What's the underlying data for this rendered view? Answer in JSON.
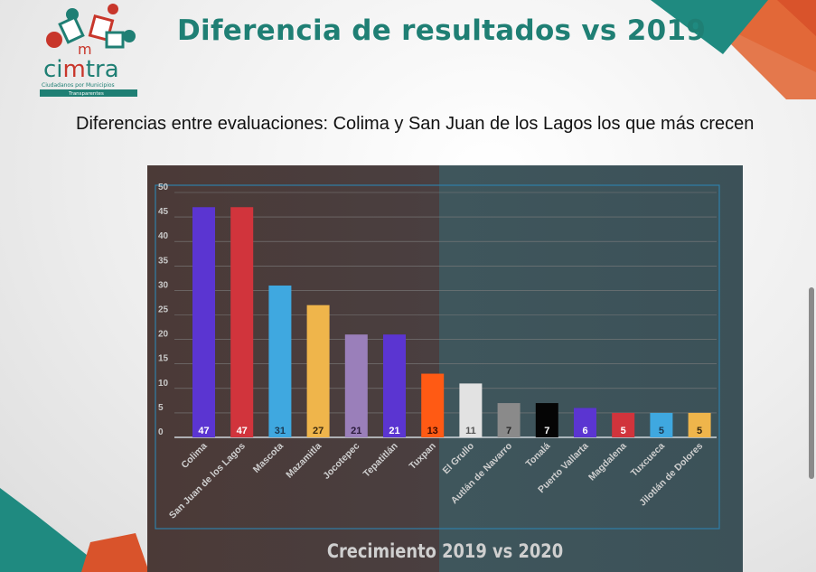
{
  "slide": {
    "title": "Diferencia de resultados vs 2019",
    "subtitle": "Diferencias entre evaluaciones: Colima y San Juan de los Lagos los que más crecen",
    "logo": {
      "name": "cimtra",
      "tagline": "Ciudadanos por Municipios Transparentes"
    }
  },
  "colors": {
    "teal": "#1f7f74",
    "orange": "#d9532b"
  },
  "chart_data": {
    "type": "bar",
    "title": "Crecimiento 2019 vs 2020",
    "xlabel": "",
    "ylabel": "",
    "ylim": [
      0,
      50
    ],
    "yticks": [
      0,
      5,
      10,
      15,
      20,
      25,
      30,
      35,
      40,
      45,
      50
    ],
    "grid": true,
    "categories": [
      "Colima",
      "San Juan de los Lagos",
      "Mascota",
      "Mazamitla",
      "Jocotepec",
      "Tepatitlán",
      "Tuxpan",
      "El Grullo",
      "Autlán de Navarro",
      "Tonalá",
      "Puerto Vallarta",
      "Magdalena",
      "Tuxcueca",
      "Jilotlán de Dolores"
    ],
    "values": [
      47,
      47,
      31,
      27,
      21,
      21,
      13,
      11,
      7,
      7,
      6,
      5,
      5,
      5
    ],
    "bar_colors": [
      "#5b35d1",
      "#d1343c",
      "#3fa8e0",
      "#efb54b",
      "#9a7fba",
      "#5b35d1",
      "#ff5a14",
      "#e2e2e2",
      "#8a8a8a",
      "#050505",
      "#5b35d1",
      "#d1343c",
      "#3fa8e0",
      "#efb54b"
    ],
    "label_colors": [
      "#ffffff",
      "#ffffff",
      "#1b3850",
      "#3a2a10",
      "#2a1a3a",
      "#ffffff",
      "#3a0a00",
      "#555555",
      "#222222",
      "#ffffff",
      "#ffffff",
      "#ffffff",
      "#1b3850",
      "#3a2a10"
    ]
  }
}
